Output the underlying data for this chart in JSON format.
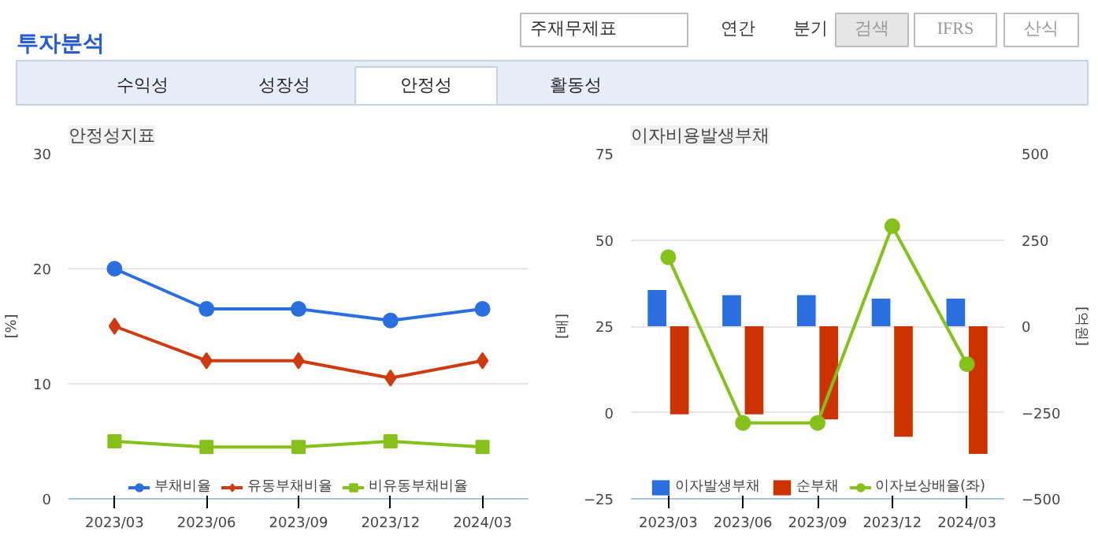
{
  "chart_data": [
    {
      "type": "other",
      "title": "투자분석",
      "annotations": [
        "주재무제표",
        "연간",
        "분기",
        "검색",
        "IFRS",
        "산식",
        "수익성",
        "성장성",
        "안정성",
        "활동성"
      ]
    },
    {
      "type": "line",
      "title": "안정성지표",
      "ylabel": "[%]",
      "categories": [
        "2023/03",
        "2023/06",
        "2023/09",
        "2023/12",
        "2024/03"
      ],
      "ylim": [
        0,
        30
      ],
      "yticks": [
        0,
        10,
        20,
        30
      ],
      "grid": "y",
      "legend": "bottom",
      "line_style": "solid",
      "series": [
        {
          "name": "부채비율",
          "color": "#2a6ee0",
          "marker": "circle",
          "values": [
            20,
            16.5,
            16.5,
            15.5,
            16.5
          ]
        },
        {
          "name": "유동부채비율",
          "color": "#d03a10",
          "marker": "diamond",
          "values": [
            15,
            12,
            12,
            10.5,
            12
          ]
        },
        {
          "name": "비유동부채비율",
          "color": "#86c01a",
          "marker": "square",
          "values": [
            5,
            4.5,
            4.5,
            5,
            4.5
          ]
        }
      ]
    },
    {
      "type": "bar",
      "title": "이자비용발생부채",
      "ylabel": "[배]",
      "y2label": "[억원]",
      "categories": [
        "2023/03",
        "2023/06",
        "2023/09",
        "2023/12",
        "2024/03"
      ],
      "ylim": [
        -25,
        75
      ],
      "yticks": [
        -25,
        0,
        25,
        50,
        75
      ],
      "y2lim": [
        -500,
        500
      ],
      "y2ticks": [
        -500,
        -250,
        0,
        250,
        500
      ],
      "grid": "y",
      "legend": "bottom",
      "series": [
        {
          "name": "이자발생부채",
          "color": "#2a6ee0",
          "axis": "y2",
          "values": [
            105,
            90,
            90,
            80,
            80
          ]
        },
        {
          "name": "순부채",
          "color": "#cc3300",
          "axis": "y2",
          "values": [
            -255,
            -255,
            -270,
            -320,
            -370
          ]
        },
        {
          "name": "이자보상배율(좌)",
          "type": "line",
          "color": "#86c01a",
          "marker": "circle",
          "axis": "y",
          "values": [
            45,
            -3,
            -3,
            54,
            14
          ]
        }
      ]
    }
  ]
}
